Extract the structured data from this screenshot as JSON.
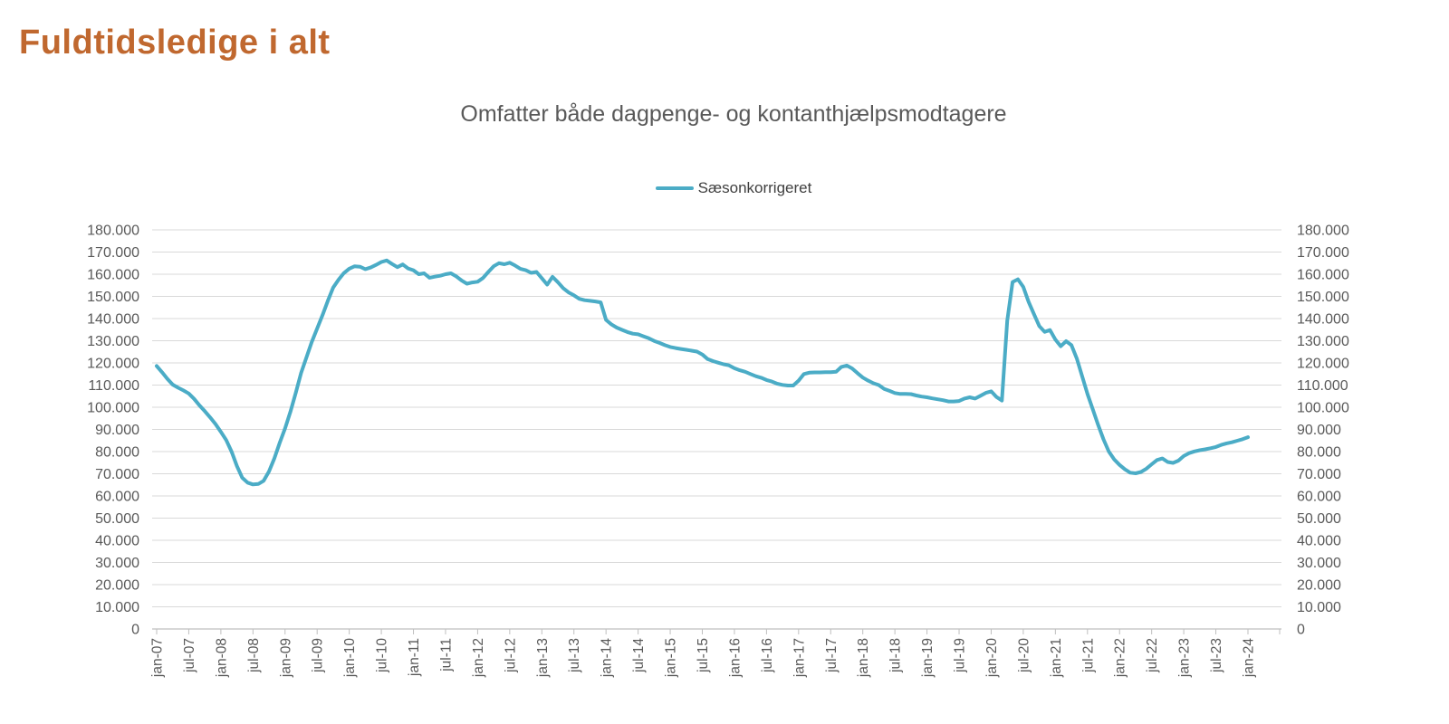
{
  "header": {
    "title": "Fuldtidsledige i alt"
  },
  "chart": {
    "subtitle": "Omfatter både dagpenge- og kontanthjælpsmodtagere",
    "legend": {
      "label": "Sæsonkorrigeret"
    },
    "colors": {
      "title": "#C0682F",
      "line": "#4BACC6",
      "grid": "#D9D9D9",
      "axis": "#BFBFBF",
      "text": "#595959"
    }
  },
  "chart_data": {
    "type": "line",
    "title": "Omfatter både dagpenge- og kontanthjælpsmodtagere",
    "legend_position": "top-center",
    "grid": "horizontal",
    "y_axis_sides": "both",
    "ylim": [
      0,
      180000
    ],
    "y_tick_step": 10000,
    "y_tick_labels": [
      "0",
      "10.000",
      "20.000",
      "30.000",
      "40.000",
      "50.000",
      "60.000",
      "70.000",
      "80.000",
      "90.000",
      "100.000",
      "110.000",
      "120.000",
      "130.000",
      "140.000",
      "150.000",
      "160.000",
      "170.000",
      "180.000"
    ],
    "x_tick_labels": [
      "jan-07",
      "jul-07",
      "jan-08",
      "jul-08",
      "jan-09",
      "jul-09",
      "jan-10",
      "jul-10",
      "jan-11",
      "jul-11",
      "jan-12",
      "jul-12",
      "jan-13",
      "jul-13",
      "jan-14",
      "jul-14",
      "jan-15",
      "jul-15",
      "jan-16",
      "jul-16",
      "jan-17",
      "jul-17",
      "jan-18",
      "jul-18",
      "jan-19",
      "jul-19",
      "jan-20",
      "jul-20",
      "jan-21",
      "jul-21",
      "jan-22",
      "jul-22",
      "jan-23",
      "jul-23",
      "jan-24"
    ],
    "x_tick_interval_months": 6,
    "series": [
      {
        "name": "Sæsonkorrigeret",
        "color": "#4BACC6",
        "start": "jan-07",
        "frequency": "monthly",
        "values": [
          118600,
          115800,
          112800,
          110200,
          108800,
          107600,
          106200,
          103800,
          100800,
          98200,
          95400,
          92400,
          88900,
          85200,
          80000,
          73500,
          68200,
          66000,
          65200,
          65400,
          66800,
          71000,
          77000,
          84000,
          90500,
          98000,
          106500,
          115500,
          122500,
          129500,
          135500,
          141500,
          148000,
          154000,
          157500,
          160500,
          162500,
          163600,
          163400,
          162300,
          163000,
          164200,
          165500,
          166200,
          164600,
          163200,
          164400,
          162600,
          161800,
          160000,
          160400,
          158400,
          158900,
          159300,
          160000,
          160400,
          159000,
          157200,
          155700,
          156300,
          156600,
          158300,
          161000,
          163600,
          165000,
          164500,
          165200,
          163900,
          162400,
          161800,
          160600,
          161000,
          158200,
          155300,
          158800,
          156400,
          153700,
          151800,
          150500,
          148900,
          148300,
          148000,
          147700,
          147300,
          139400,
          137400,
          135900,
          134900,
          133900,
          133200,
          132900,
          132000,
          131100,
          129900,
          129000,
          128000,
          127200,
          126700,
          126300,
          125900,
          125500,
          125100,
          123800,
          121700,
          120800,
          120100,
          119400,
          118900,
          117600,
          116700,
          116000,
          115000,
          114000,
          113300,
          112300,
          111600,
          110600,
          110100,
          109800,
          109800,
          112000,
          115000,
          115600,
          115700,
          115700,
          115800,
          115800,
          116000,
          118200,
          118800,
          117500,
          115400,
          113400,
          112000,
          110800,
          110000,
          108300,
          107400,
          106400,
          106000,
          106000,
          105900,
          105300,
          104800,
          104500,
          104000,
          103600,
          103200,
          102600,
          102600,
          102800,
          103900,
          104500,
          103900,
          105200,
          106500,
          107200,
          104600,
          103000,
          139000,
          156500,
          157700,
          154300,
          147500,
          142000,
          136600,
          134000,
          134800,
          130500,
          127500,
          129800,
          128000,
          122000,
          114000,
          106000,
          99000,
          92000,
          85500,
          80000,
          76500,
          74000,
          72000,
          70500,
          70200,
          70800,
          72300,
          74300,
          76200,
          76900,
          75300,
          74900,
          75900,
          78000,
          79300,
          80100,
          80600,
          81000,
          81500,
          82100,
          83000,
          83700,
          84200,
          84900,
          85600,
          86500
        ]
      }
    ]
  }
}
